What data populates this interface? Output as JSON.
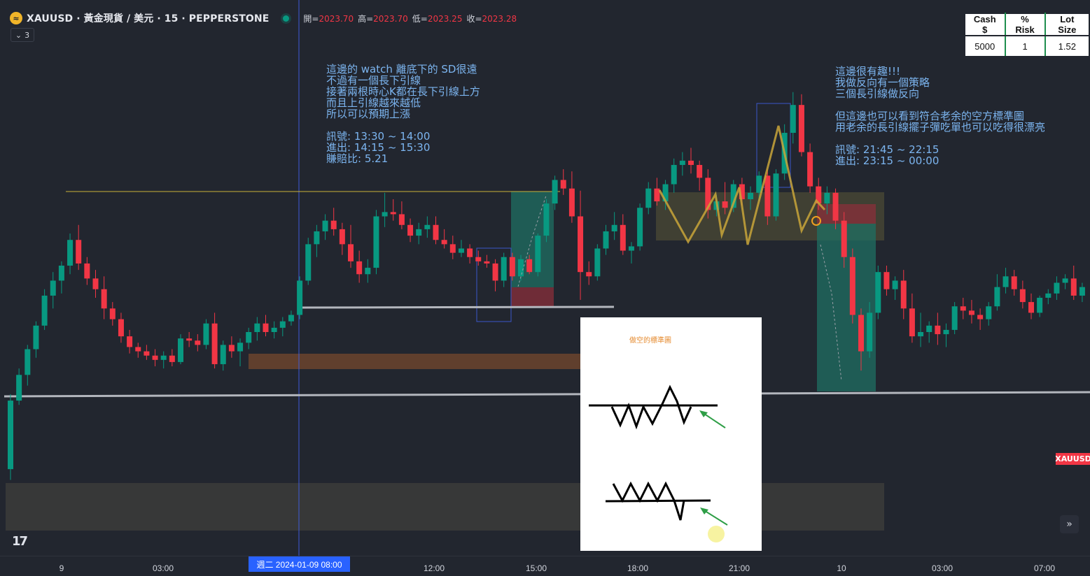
{
  "header": {
    "symbol": "XAUUSD · 黃金現貨 / 美元 · 15 · PEPPERSTONE",
    "open_label": "開=",
    "open": "2023.70",
    "high_label": "高=",
    "high": "2023.70",
    "low_label": "低=",
    "low": "2023.25",
    "close_label": "收=",
    "close": "2023.28",
    "indicator_count": "3"
  },
  "risk_table": {
    "headers": [
      "Cash $",
      "% Risk",
      "Lot Size"
    ],
    "values": [
      "5000",
      "1",
      "1.52"
    ]
  },
  "annotations": {
    "left": "這邊的 watch 離底下的 SD很遠\n不過有一個長下引線\n接著兩根時心K都在長下引線上方\n而且上引線越來越低\n所以可以預期上漲\n\n訊號: 13:30 ~ 14:00\n進出: 14:15 ~ 15:30\n賺賠比: 5.21",
    "right": "這邊很有趣!!!\n我做反向有一個策略\n三個長引線做反向\n\n但這邊也可以看到符合老余的空方標準圖\n用老余的長引線擺子彈吃單也可以吃得很漂亮\n\n訊號: 21:45 ~ 22:15\n進出: 23:15 ~ 00:00"
  },
  "panel": {
    "title": "做空的標準圖"
  },
  "price_tag": "XAUUSD",
  "time_axis": {
    "ticks": [
      "9",
      "03:00",
      "12:00",
      "15:00",
      "18:00",
      "21:00",
      "10",
      "03:00",
      "07:00"
    ],
    "selected": "週二 2024-01-09   08:00"
  },
  "colors": {
    "up": "#089981",
    "down": "#f23645",
    "background": "#22262f",
    "annotation": "#7cb5f0"
  },
  "chart_data": {
    "type": "candlestick",
    "candles": [
      [
        2018.4,
        2021.9,
        2017.9,
        2021.6
      ],
      [
        2021.6,
        2023.1,
        2021.4,
        2022.8
      ],
      [
        2022.8,
        2024.2,
        2022.3,
        2024.0
      ],
      [
        2024.0,
        2025.3,
        2023.6,
        2025.1
      ],
      [
        2025.1,
        2026.8,
        2024.9,
        2026.5
      ],
      [
        2026.5,
        2027.6,
        2025.9,
        2027.2
      ],
      [
        2027.2,
        2028.1,
        2026.6,
        2027.9
      ],
      [
        2027.9,
        2029.4,
        2027.5,
        2029.1
      ],
      [
        2029.1,
        2029.8,
        2027.7,
        2028.0
      ],
      [
        2028.0,
        2028.3,
        2027.0,
        2027.3
      ],
      [
        2027.3,
        2027.7,
        2026.4,
        2026.8
      ],
      [
        2026.8,
        2027.4,
        2025.4,
        2025.9
      ],
      [
        2025.9,
        2026.2,
        2025.1,
        2025.4
      ],
      [
        2025.4,
        2025.7,
        2024.3,
        2024.6
      ],
      [
        2024.6,
        2024.9,
        2023.8,
        2024.1
      ],
      [
        2024.1,
        2024.3,
        2023.6,
        2023.9
      ],
      [
        2023.9,
        2024.2,
        2023.5,
        2023.7
      ],
      [
        2023.7,
        2024.0,
        2023.2,
        2023.5
      ],
      [
        2023.5,
        2023.9,
        2023.1,
        2023.7
      ],
      [
        2023.7,
        2024.0,
        2023.2,
        2023.4
      ],
      [
        2023.4,
        2024.7,
        2023.3,
        2024.5
      ],
      [
        2024.5,
        2024.8,
        2024.1,
        2024.4
      ],
      [
        2024.4,
        2024.7,
        2023.9,
        2024.2
      ],
      [
        2024.2,
        2025.4,
        2024.0,
        2025.2
      ],
      [
        2025.2,
        2025.7,
        2023.1,
        2023.3
      ],
      [
        2023.3,
        2024.4,
        2023.0,
        2024.2
      ],
      [
        2024.2,
        2024.6,
        2023.6,
        2023.9
      ],
      [
        2023.9,
        2024.5,
        2023.2,
        2024.3
      ],
      [
        2024.3,
        2025.0,
        2024.0,
        2024.8
      ],
      [
        2024.8,
        2025.5,
        2024.4,
        2025.2
      ],
      [
        2025.2,
        2025.6,
        2024.6,
        2024.8
      ],
      [
        2024.8,
        2025.3,
        2024.5,
        2025.0
      ],
      [
        2025.0,
        2025.5,
        2024.6,
        2025.3
      ],
      [
        2025.3,
        2025.8,
        2025.1,
        2025.6
      ],
      [
        2025.6,
        2027.4,
        2025.4,
        2027.2
      ],
      [
        2027.2,
        2029.2,
        2027.0,
        2028.9
      ],
      [
        2028.9,
        2029.8,
        2028.3,
        2029.5
      ],
      [
        2029.5,
        2030.3,
        2029.1,
        2030.0
      ],
      [
        2030.0,
        2030.6,
        2029.3,
        2029.6
      ],
      [
        2029.6,
        2029.9,
        2028.4,
        2028.9
      ],
      [
        2028.9,
        2029.8,
        2027.8,
        2028.1
      ],
      [
        2028.1,
        2028.6,
        2027.1,
        2027.5
      ],
      [
        2027.5,
        2028.2,
        2027.1,
        2027.8
      ],
      [
        2027.8,
        2030.5,
        2027.5,
        2030.2
      ],
      [
        2030.2,
        2031.3,
        2029.7,
        2030.4
      ],
      [
        2030.4,
        2031.0,
        2030.0,
        2030.3
      ],
      [
        2030.3,
        2030.9,
        2029.6,
        2029.8
      ],
      [
        2029.8,
        2030.1,
        2029.0,
        2029.3
      ],
      [
        2029.3,
        2029.9,
        2028.9,
        2029.6
      ],
      [
        2029.6,
        2030.2,
        2029.2,
        2029.8
      ],
      [
        2029.8,
        2030.2,
        2028.9,
        2029.1
      ],
      [
        2029.1,
        2029.6,
        2028.7,
        2028.9
      ],
      [
        2028.9,
        2029.3,
        2028.2,
        2028.5
      ],
      [
        2028.5,
        2029.1,
        2028.3,
        2028.7
      ],
      [
        2028.7,
        2028.9,
        2028.0,
        2028.3
      ],
      [
        2028.3,
        2028.6,
        2027.9,
        2028.1
      ],
      [
        2028.1,
        2028.4,
        2027.8,
        2028.0
      ],
      [
        2028.0,
        2028.2,
        2026.7,
        2027.2
      ],
      [
        2027.2,
        2028.5,
        2026.9,
        2028.3
      ],
      [
        2028.3,
        2028.5,
        2027.2,
        2027.4
      ],
      [
        2027.4,
        2028.4,
        2027.2,
        2028.2
      ],
      [
        2028.2,
        2028.4,
        2027.5,
        2027.6
      ],
      [
        2027.6,
        2029.4,
        2027.4,
        2029.3
      ],
      [
        2029.3,
        2031.0,
        2029.0,
        2030.8
      ],
      [
        2030.8,
        2032.1,
        2030.5,
        2031.9
      ],
      [
        2031.9,
        2032.4,
        2031.2,
        2031.5
      ],
      [
        2031.5,
        2032.3,
        2029.9,
        2030.2
      ],
      [
        2030.2,
        2031.4,
        2026.3,
        2027.6
      ],
      [
        2027.6,
        2028.1,
        2027.0,
        2027.4
      ],
      [
        2027.4,
        2028.9,
        2027.2,
        2028.7
      ],
      [
        2028.7,
        2029.8,
        2028.4,
        2029.5
      ],
      [
        2029.5,
        2030.4,
        2029.1,
        2029.8
      ],
      [
        2029.8,
        2030.3,
        2028.4,
        2028.6
      ],
      [
        2028.6,
        2029.0,
        2028.0,
        2028.8
      ],
      [
        2028.8,
        2030.8,
        2028.6,
        2030.6
      ],
      [
        2030.6,
        2031.8,
        2030.3,
        2031.5
      ],
      [
        2031.5,
        2032.0,
        2030.7,
        2030.9
      ],
      [
        2030.9,
        2031.9,
        2030.5,
        2031.7
      ],
      [
        2031.7,
        2032.9,
        2031.3,
        2032.6
      ],
      [
        2032.6,
        2033.2,
        2032.1,
        2032.8
      ],
      [
        2032.8,
        2033.4,
        2032.2,
        2032.6
      ],
      [
        2032.6,
        2032.8,
        2031.4,
        2032.0
      ],
      [
        2032.0,
        2032.4,
        2030.1,
        2030.5
      ],
      [
        2030.5,
        2031.2,
        2030.2,
        2030.9
      ],
      [
        2030.9,
        2031.8,
        2030.3,
        2030.6
      ],
      [
        2030.6,
        2031.9,
        2030.4,
        2031.7
      ],
      [
        2031.7,
        2032.0,
        2030.7,
        2031.0
      ],
      [
        2031.0,
        2031.6,
        2030.5,
        2031.3
      ],
      [
        2031.3,
        2032.3,
        2030.9,
        2032.1
      ],
      [
        2032.1,
        2032.4,
        2029.8,
        2030.2
      ],
      [
        2030.2,
        2032.4,
        2030.0,
        2032.2
      ],
      [
        2032.2,
        2034.5,
        2031.9,
        2034.1
      ],
      [
        2034.1,
        2036.0,
        2033.6,
        2035.4
      ],
      [
        2035.4,
        2035.9,
        2033.0,
        2033.2
      ],
      [
        2033.2,
        2033.6,
        2031.3,
        2031.6
      ],
      [
        2031.6,
        2032.0,
        2030.5,
        2030.8
      ],
      [
        2030.8,
        2031.6,
        2030.3,
        2031.3
      ],
      [
        2031.3,
        2031.5,
        2029.6,
        2030.0
      ],
      [
        2030.0,
        2030.4,
        2027.8,
        2028.3
      ],
      [
        2028.3,
        2028.7,
        2025.2,
        2025.6
      ],
      [
        2025.6,
        2025.9,
        2023.0,
        2023.9
      ],
      [
        2023.9,
        2026.2,
        2023.6,
        2025.7
      ],
      [
        2025.7,
        2027.9,
        2025.4,
        2027.6
      ],
      [
        2027.6,
        2027.9,
        2026.5,
        2026.8
      ],
      [
        2026.8,
        2027.4,
        2026.3,
        2027.2
      ],
      [
        2027.2,
        2027.7,
        2025.4,
        2025.9
      ],
      [
        2025.9,
        2026.6,
        2024.3,
        2024.6
      ],
      [
        2024.6,
        2025.7,
        2024.1,
        2024.8
      ],
      [
        2024.8,
        2025.3,
        2024.3,
        2025.1
      ],
      [
        2025.1,
        2025.7,
        2024.2,
        2024.7
      ],
      [
        2024.7,
        2025.2,
        2024.1,
        2024.9
      ],
      [
        2024.9,
        2026.2,
        2024.7,
        2026.0
      ],
      [
        2026.0,
        2026.4,
        2025.4,
        2025.8
      ],
      [
        2025.8,
        2026.3,
        2025.2,
        2025.6
      ],
      [
        2025.6,
        2025.9,
        2024.9,
        2025.4
      ],
      [
        2025.4,
        2026.2,
        2025.1,
        2026.0
      ],
      [
        2026.0,
        2027.5,
        2025.8,
        2026.9
      ],
      [
        2026.9,
        2027.8,
        2026.6,
        2027.4
      ],
      [
        2027.4,
        2027.7,
        2026.5,
        2026.8
      ],
      [
        2026.8,
        2027.2,
        2025.9,
        2026.2
      ],
      [
        2026.2,
        2026.6,
        2025.4,
        2025.7
      ],
      [
        2025.7,
        2026.5,
        2025.5,
        2026.4
      ],
      [
        2026.4,
        2026.8,
        2026.1,
        2026.6
      ],
      [
        2026.6,
        2027.4,
        2026.3,
        2027.1
      ],
      [
        2027.1,
        2027.5,
        2026.8,
        2027.3
      ],
      [
        2027.3,
        2027.9,
        2026.3,
        2026.5
      ],
      [
        2026.5,
        2027.1,
        2026.2,
        2026.9
      ],
      [
        2026.9,
        2028.1,
        2026.6,
        2027.9
      ],
      [
        2027.9,
        2028.3,
        2027.1,
        2027.5
      ],
      [
        2027.5,
        2028.4,
        2027.3,
        2027.8
      ]
    ],
    "horizontal_lines": [
      2023.4,
      2028.3
    ],
    "resistance_line": 2029.5,
    "x_labels": [
      "9",
      "03:00",
      "12:00",
      "15:00",
      "18:00",
      "21:00",
      "10",
      "03:00",
      "07:00"
    ]
  }
}
